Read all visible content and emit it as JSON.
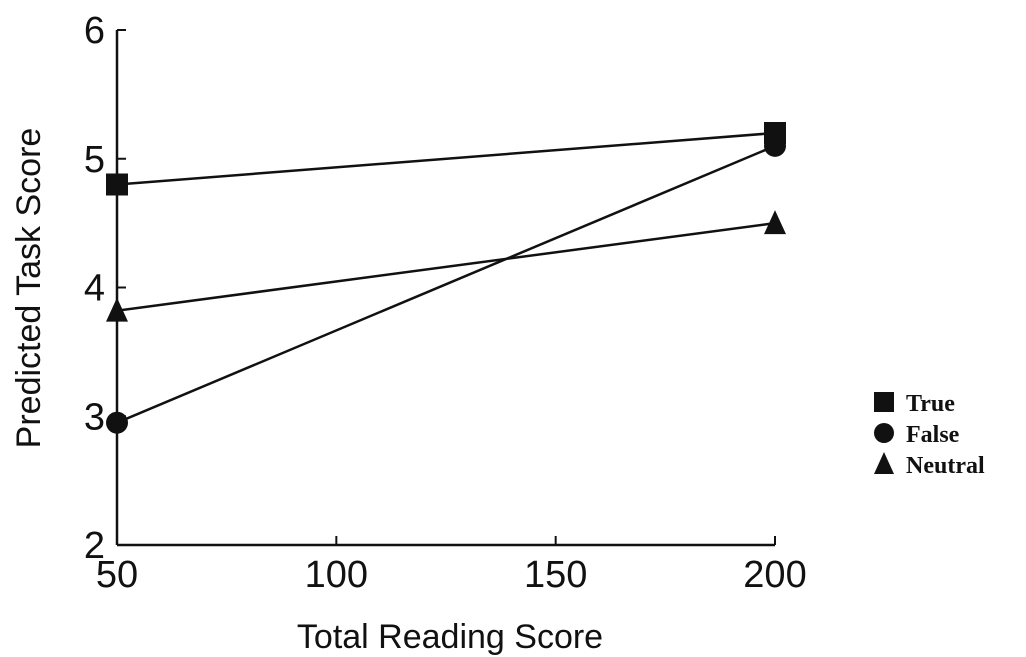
{
  "chart_data": {
    "type": "line",
    "title": "",
    "xlabel": "Total Reading Score",
    "ylabel": "Predicted Task Score",
    "xlim": [
      50,
      200
    ],
    "ylim": [
      2,
      6
    ],
    "xticks": [
      50,
      100,
      150,
      200
    ],
    "yticks": [
      2,
      3,
      4,
      5,
      6
    ],
    "grid": false,
    "legend_position": "right",
    "series": [
      {
        "name": "True",
        "marker": "square",
        "points": [
          [
            50,
            4.8
          ],
          [
            200,
            5.2
          ]
        ]
      },
      {
        "name": "False",
        "marker": "circle",
        "points": [
          [
            50,
            2.95
          ],
          [
            200,
            5.1
          ]
        ]
      },
      {
        "name": "Neutral",
        "marker": "triangle",
        "points": [
          [
            50,
            3.82
          ],
          [
            200,
            4.5
          ]
        ]
      }
    ]
  }
}
